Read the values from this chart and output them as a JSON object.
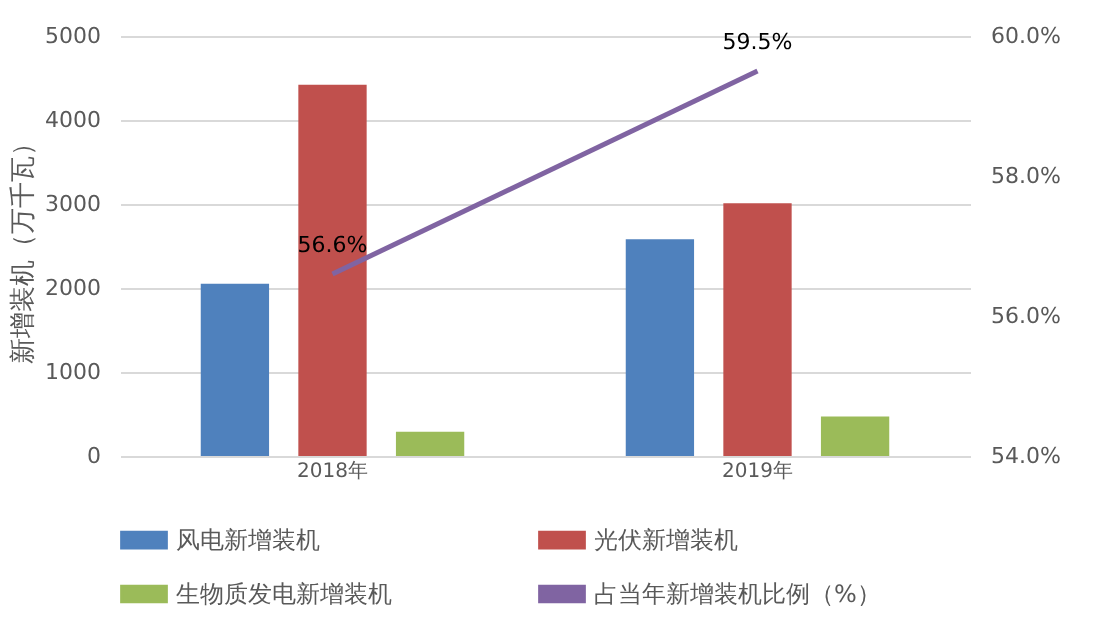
{
  "chart_data": {
    "type": "bar",
    "ylabel": "新增装机（万千瓦）",
    "categories": [
      "2018年",
      "2019年"
    ],
    "series": [
      {
        "name": "风电新增装机",
        "color": "#4f81bd",
        "values": [
          2050,
          2580
        ]
      },
      {
        "name": "光伏新增装机",
        "color": "#c0504d",
        "values": [
          4420,
          3010
        ]
      },
      {
        "name": "生物质发电新增装机",
        "color": "#9bbb59",
        "values": [
          290,
          470
        ]
      },
      {
        "name": "占当年新增装机比例（%）",
        "type": "line",
        "axis": "y2",
        "color": "#8064a2",
        "values": [
          56.6,
          59.5
        ],
        "value_labels": [
          "56.6%",
          "59.5%"
        ]
      }
    ],
    "ylim": [
      0,
      5000
    ],
    "yticks": [
      0,
      1000,
      2000,
      3000,
      4000,
      5000
    ],
    "y2lim": [
      54,
      60
    ],
    "y2ticks": [
      {
        "value": 54,
        "label": "54.0%"
      },
      {
        "value": 56,
        "label": "56.0%"
      },
      {
        "value": 58,
        "label": "58.0%"
      },
      {
        "value": 60,
        "label": "60.0%"
      }
    ],
    "grid": "y",
    "legend": "bottom"
  }
}
